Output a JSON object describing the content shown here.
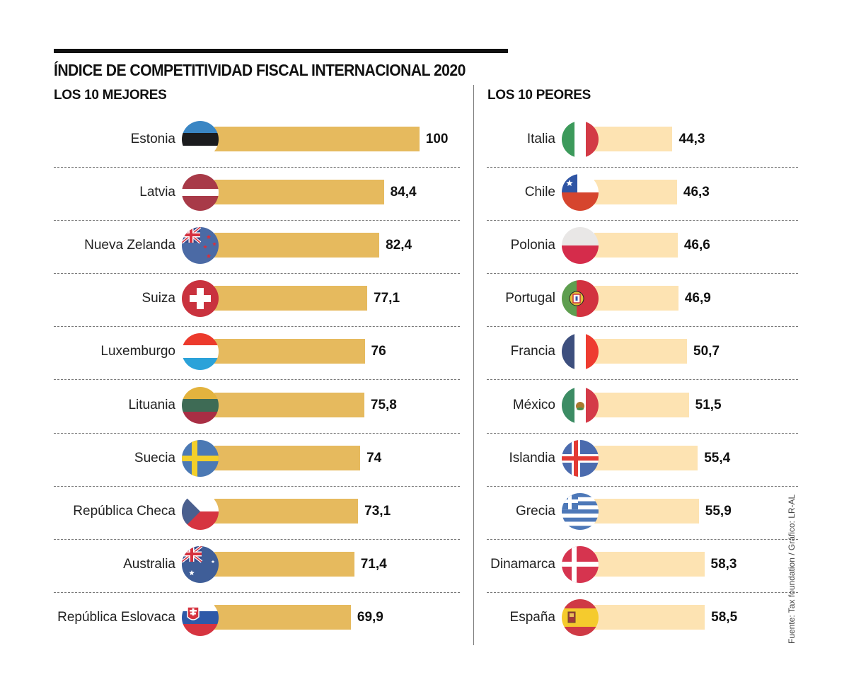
{
  "header": {
    "title": "ÍNDICE DE COMPETITIVIDAD FISCAL INTERNACIONAL 2020",
    "left_subtitle": "LOS 10 MEJORES",
    "right_subtitle": "LOS 10 PEORES"
  },
  "source": "Fuente: Tax foundation / Gráfico: LR-AL",
  "colors": {
    "best_bar": "#E6BA5E",
    "worst_bar": "#FDE3B2"
  },
  "chart_data": [
    {
      "type": "bar",
      "orientation": "horizontal",
      "title": "LOS 10 MEJORES",
      "categories": [
        "Estonia",
        "Latvia",
        "Nueva Zelanda",
        "Suiza",
        "Luxemburgo",
        "Lituania",
        "Suecia",
        "República Checa",
        "Australia",
        "República Eslovaca"
      ],
      "values": [
        100,
        84.4,
        82.4,
        77.1,
        76,
        75.8,
        74,
        73.1,
        71.4,
        69.9
      ],
      "value_labels": [
        "100",
        "84,4",
        "82,4",
        "77,1",
        "76",
        "75,8",
        "74",
        "73,1",
        "71,4",
        "69,9"
      ],
      "flags": [
        "estonia",
        "latvia",
        "new-zealand",
        "switzerland",
        "luxembourg",
        "lithuania",
        "sweden",
        "czech",
        "australia",
        "slovakia"
      ],
      "xlabel": "",
      "ylabel": "",
      "grid": false
    },
    {
      "type": "bar",
      "orientation": "horizontal",
      "title": "LOS 10 PEORES",
      "categories": [
        "Italia",
        "Chile",
        "Polonia",
        "Portugal",
        "Francia",
        "México",
        "Islandia",
        "Grecia",
        "Dinamarca",
        "España"
      ],
      "values": [
        44.3,
        46.3,
        46.6,
        46.9,
        50.7,
        51.5,
        55.4,
        55.9,
        58.3,
        58.5
      ],
      "value_labels": [
        "44,3",
        "46,3",
        "46,6",
        "46,9",
        "50,7",
        "51,5",
        "55,4",
        "55,9",
        "58,3",
        "58,5"
      ],
      "flags": [
        "italy",
        "chile",
        "poland",
        "portugal",
        "france",
        "mexico",
        "iceland",
        "greece",
        "denmark",
        "spain"
      ],
      "xlabel": "",
      "ylabel": "",
      "grid": false
    }
  ]
}
